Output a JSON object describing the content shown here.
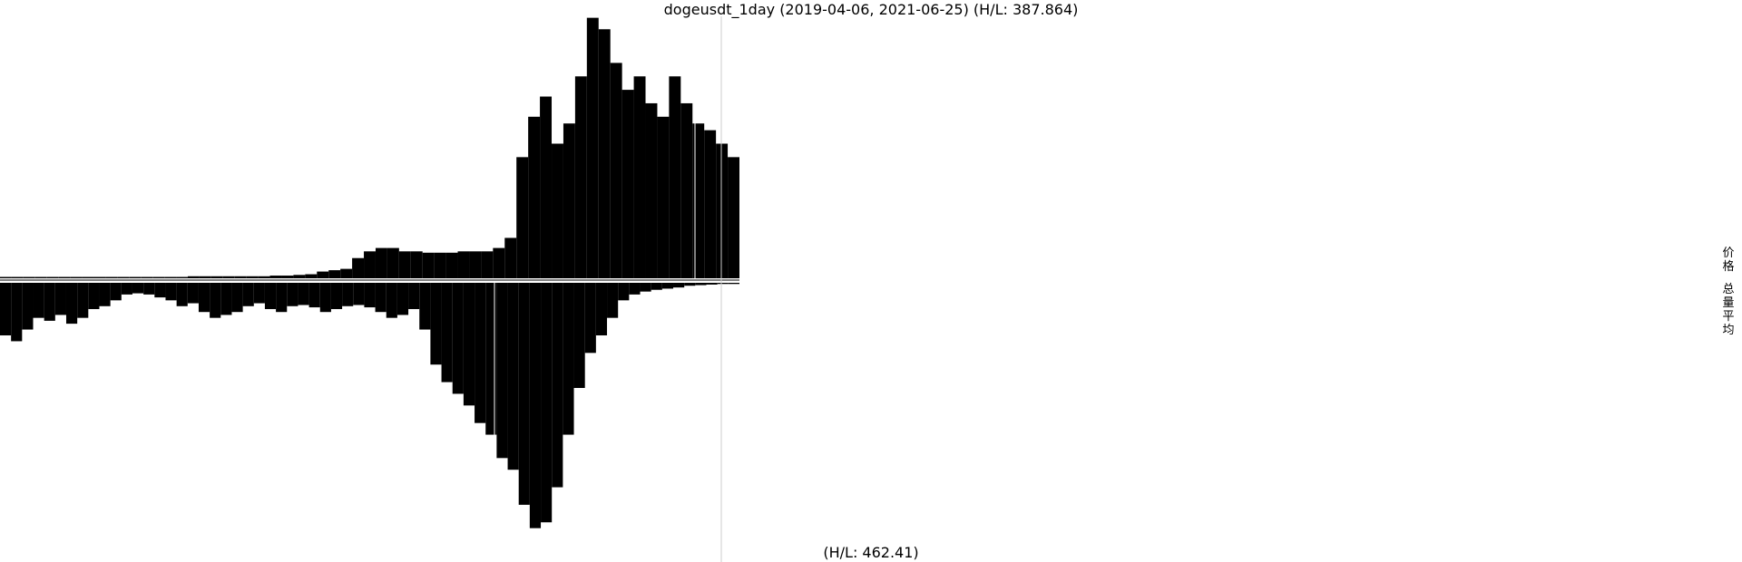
{
  "chart_data": {
    "type": "bar",
    "title": "dogeusdt_1day (2019-04-06, 2021-06-25) (H/L: 387.864)",
    "subtitle": "(H/L: 462.41)",
    "x_start": "2019-04-06",
    "x_end": "2021-06-25",
    "legend": [
      "价格",
      "总量平均"
    ],
    "legend_placement": "right",
    "grid": false,
    "series": [
      {
        "name": "价格",
        "direction": "up",
        "ylim": [
          0,
          387.864
        ],
        "values": [
          2,
          2,
          2,
          2,
          2,
          2,
          2,
          2,
          2,
          2,
          2,
          2,
          2,
          2,
          2,
          2,
          3,
          3,
          3,
          3,
          3,
          3,
          3,
          4,
          4,
          5,
          6,
          10,
          12,
          14,
          30,
          40,
          45,
          45,
          40,
          40,
          38,
          38,
          38,
          40,
          40,
          40,
          45,
          60,
          180,
          240,
          270,
          200,
          230,
          300,
          387,
          370,
          320,
          280,
          300,
          260,
          240,
          300,
          260,
          230,
          220,
          200,
          180
        ]
      },
      {
        "name": "总量平均",
        "direction": "down",
        "ylim": [
          0,
          462.41
        ],
        "values": [
          90,
          100,
          80,
          60,
          65,
          55,
          70,
          60,
          45,
          40,
          30,
          20,
          18,
          20,
          25,
          30,
          40,
          35,
          50,
          60,
          55,
          50,
          40,
          35,
          45,
          50,
          40,
          38,
          42,
          50,
          45,
          40,
          38,
          42,
          50,
          60,
          55,
          45,
          80,
          140,
          170,
          190,
          210,
          240,
          260,
          300,
          320,
          380,
          420,
          410,
          350,
          260,
          180,
          120,
          90,
          60,
          30,
          20,
          15,
          12,
          10,
          8,
          5,
          4,
          3,
          2,
          2
        ]
      }
    ]
  }
}
